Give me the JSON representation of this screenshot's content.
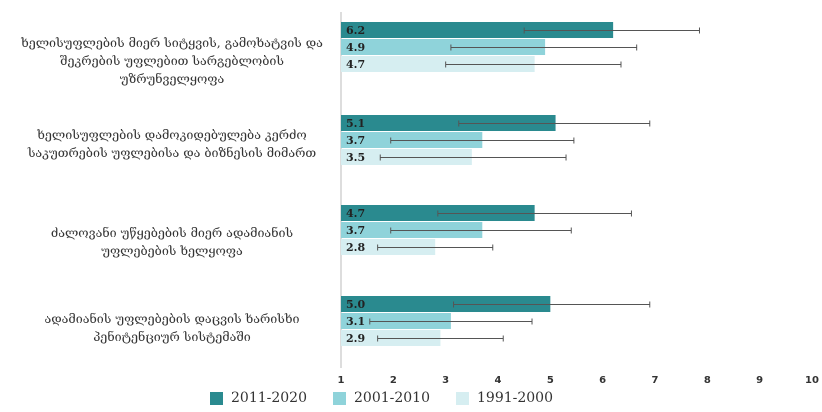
{
  "chart_data": {
    "type": "bar",
    "orientation": "horizontal",
    "categories": [
      "ხელისუფლების მიერ სიტყვის, გამოხატვის და შეკრების უფლებით სარგებლობის უზრუნველყოფა",
      "ხელისუფლების დამოკიდებულება კერძო საკუთრების უფლებისა და ბიზნესის მიმართ",
      "ძალოვანი უწყებების მიერ ადამიანის უფლებების ხელყოფა",
      "ადამიანის უფლებების დაცვის ხარისხი პენიტენციურ სისტემაში"
    ],
    "series": [
      {
        "name": "2011-2020",
        "color": "#2a8a8f",
        "values": [
          6.2,
          5.1,
          4.7,
          5.0
        ],
        "error": [
          [
            4.5,
            7.85
          ],
          [
            3.25,
            6.9
          ],
          [
            2.85,
            6.55
          ],
          [
            3.15,
            6.9
          ]
        ]
      },
      {
        "name": "2001-2010",
        "color": "#8fd3da",
        "values": [
          4.9,
          3.7,
          3.7,
          3.1
        ],
        "error": [
          [
            3.1,
            6.65
          ],
          [
            1.95,
            5.45
          ],
          [
            1.95,
            5.4
          ],
          [
            1.55,
            4.65
          ]
        ]
      },
      {
        "name": "1991-2000",
        "color": "#d6eef1",
        "values": [
          4.7,
          3.5,
          2.8,
          2.9
        ],
        "error": [
          [
            3.0,
            6.35
          ],
          [
            1.75,
            5.3
          ],
          [
            1.7,
            3.9
          ],
          [
            1.7,
            4.1
          ]
        ]
      }
    ],
    "value_labels": [
      [
        "6.2",
        "4.9",
        "4.7"
      ],
      [
        "5.1",
        "3.7",
        "3.5"
      ],
      [
        "4.7",
        "3.7",
        "2.8"
      ],
      [
        "5.0",
        "3.1",
        "2.9"
      ]
    ],
    "xlim": [
      1,
      10
    ],
    "xticks": [
      "1",
      "2",
      "3",
      "4",
      "5",
      "6",
      "7",
      "8",
      "9",
      "10"
    ],
    "legend_position": "bottom",
    "grid": false
  }
}
